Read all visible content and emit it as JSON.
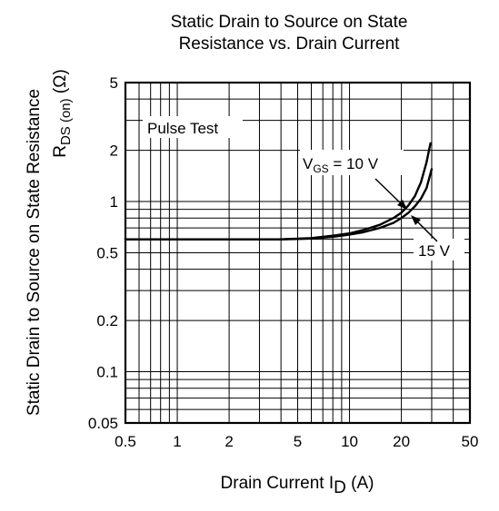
{
  "chart_data": {
    "type": "line",
    "title_line1": "Static Drain to Source on State",
    "title_line2": "Resistance vs. Drain Current",
    "xlabel": "Drain Current  I",
    "xlabel_sub": "D",
    "xlabel_unit": "  (A)",
    "ylabel_line1": "Static Drain to Source on State Resistance",
    "ylabel_line2_main": "R",
    "ylabel_line2_sub": "DS (on)",
    "ylabel_line2_unit": "  (Ω)",
    "x_scale": "log",
    "y_scale": "log",
    "xlim": [
      0.5,
      50
    ],
    "ylim": [
      0.05,
      5
    ],
    "x_ticks": [
      0.5,
      1,
      2,
      5,
      10,
      20,
      50
    ],
    "x_tick_labels": [
      "0.5",
      "1",
      "2",
      "5",
      "10",
      "20",
      "50"
    ],
    "y_ticks": [
      0.05,
      0.1,
      0.2,
      0.5,
      1,
      2,
      5
    ],
    "y_tick_labels": [
      "0.05",
      "0.1",
      "0.2",
      "0.5",
      "1",
      "2",
      "5"
    ],
    "grid": true,
    "annotation": "Pulse Test",
    "series": [
      {
        "name_main": "V",
        "name_sub": "GS",
        "name_rest": " = 10 V",
        "x": [
          0.5,
          1,
          2,
          4,
          5,
          6,
          8,
          10,
          12,
          15,
          18,
          20,
          22,
          24,
          26,
          28,
          29.5
        ],
        "y": [
          0.6,
          0.6,
          0.6,
          0.6,
          0.605,
          0.61,
          0.63,
          0.65,
          0.68,
          0.73,
          0.8,
          0.86,
          0.95,
          1.08,
          1.3,
          1.7,
          2.2
        ]
      },
      {
        "name_main": "15 V",
        "name_sub": "",
        "name_rest": "",
        "x": [
          0.5,
          1,
          2,
          4,
          5,
          6,
          8,
          10,
          12,
          15,
          18,
          20,
          22,
          24,
          26,
          28,
          30
        ],
        "y": [
          0.6,
          0.6,
          0.6,
          0.6,
          0.603,
          0.607,
          0.62,
          0.64,
          0.66,
          0.7,
          0.75,
          0.8,
          0.86,
          0.94,
          1.04,
          1.2,
          1.55
        ]
      }
    ]
  }
}
